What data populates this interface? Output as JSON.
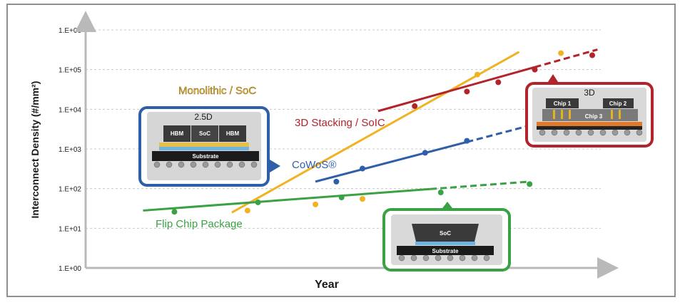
{
  "chart_data": {
    "type": "line",
    "ylabel": "Interconnect Density (#/mm²)",
    "xlabel": "Year",
    "yscale": "log",
    "ylim": [
      1,
      1000000
    ],
    "yticks": [
      "1.E+00",
      "1.E+01",
      "1.E+02",
      "1.E+03",
      "1.E+04",
      "1.E+05",
      "1.E+06"
    ],
    "xlim": [
      0,
      1
    ],
    "grid": true,
    "series": [
      {
        "name": "Monolithic / SoC",
        "color": "#f0b323",
        "line": [
          [
            0.28,
            25
          ],
          [
            0.83,
            280000
          ]
        ],
        "dashed_from": null,
        "points": [
          [
            0.31,
            28
          ],
          [
            0.44,
            40
          ],
          [
            0.53,
            55
          ],
          [
            0.75,
            75000
          ],
          [
            0.91,
            260000
          ]
        ]
      },
      {
        "name": "3D Stacking / SoIC",
        "color": "#b3232b",
        "line": [
          [
            0.56,
            9000
          ],
          [
            0.98,
            320000
          ]
        ],
        "dashed_from": 0.86,
        "points": [
          [
            0.63,
            12000
          ],
          [
            0.73,
            28000
          ],
          [
            0.79,
            48000
          ],
          [
            0.86,
            100000
          ],
          [
            0.97,
            230000
          ]
        ]
      },
      {
        "name": "CoWoS®",
        "color": "#2f5fa6",
        "line": [
          [
            0.44,
            150
          ],
          [
            0.86,
            4200
          ]
        ],
        "dashed_from": 0.73,
        "points": [
          [
            0.48,
            150
          ],
          [
            0.53,
            320
          ],
          [
            0.65,
            800
          ],
          [
            0.73,
            1600
          ],
          [
            0.85,
            4000
          ]
        ]
      },
      {
        "name": "Flip Chip Package",
        "color": "#3aa245",
        "line": [
          [
            0.11,
            28
          ],
          [
            0.85,
            150
          ]
        ],
        "dashed_from": 0.66,
        "points": [
          [
            0.17,
            26
          ],
          [
            0.33,
            45
          ],
          [
            0.49,
            60
          ],
          [
            0.68,
            80
          ],
          [
            0.85,
            130
          ]
        ]
      }
    ]
  },
  "callouts": {
    "cowos_box": {
      "title": "2.5D",
      "hbm_left": "HBM",
      "soc": "SoC",
      "hbm_right": "HBM",
      "substrate": "Substrate",
      "border": "#2f5fa6"
    },
    "soic_box": {
      "title": "3D",
      "chip1": "Chip 1",
      "chip2": "Chip 2",
      "chip3": "Chip 3",
      "border": "#b3232b"
    },
    "flipchip_box": {
      "soc": "SoC",
      "substrate": "Substrate",
      "border": "#3aa245"
    }
  }
}
